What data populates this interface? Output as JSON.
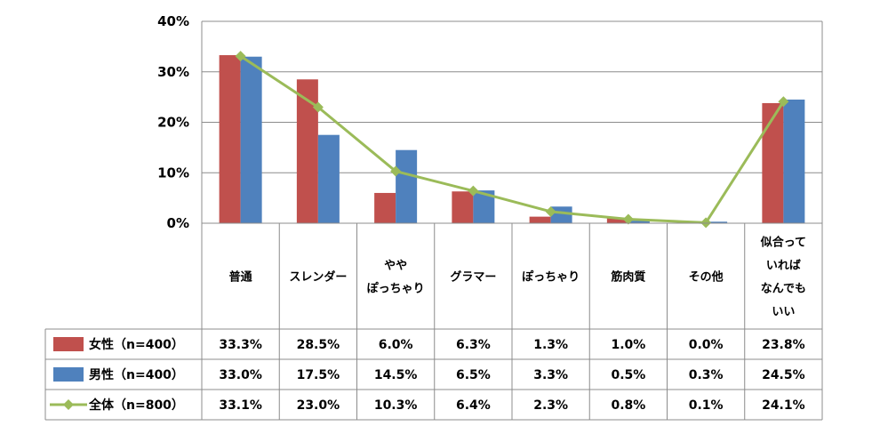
{
  "chart_data": {
    "type": "bar",
    "categories": [
      [
        "普通"
      ],
      [
        "スレンダー"
      ],
      [
        "やや",
        "ぽっちゃり"
      ],
      [
        "グラマー"
      ],
      [
        "ぽっちゃり"
      ],
      [
        "筋肉質"
      ],
      [
        "その他"
      ],
      [
        "似合って",
        "いれば",
        "なんでも",
        "いい"
      ]
    ],
    "series": [
      {
        "name": "女性（n=400）",
        "type": "bar",
        "color": "#c0504d",
        "values": [
          33.3,
          28.5,
          6.0,
          6.3,
          1.3,
          1.0,
          0.0,
          23.8
        ],
        "labels": [
          "33.3%",
          "28.5%",
          "6.0%",
          "6.3%",
          "1.3%",
          "1.0%",
          "0.0%",
          "23.8%"
        ]
      },
      {
        "name": "男性（n=400）",
        "type": "bar",
        "color": "#4f81bd",
        "values": [
          33.0,
          17.5,
          14.5,
          6.5,
          3.3,
          0.5,
          0.3,
          24.5
        ],
        "labels": [
          "33.0%",
          "17.5%",
          "14.5%",
          "6.5%",
          "3.3%",
          "0.5%",
          "0.3%",
          "24.5%"
        ]
      },
      {
        "name": "全体（n=800）",
        "type": "line",
        "color": "#9bbb59",
        "values": [
          33.1,
          23.0,
          10.3,
          6.4,
          2.3,
          0.8,
          0.1,
          24.1
        ],
        "labels": [
          "33.1%",
          "23.0%",
          "10.3%",
          "6.4%",
          "2.3%",
          "0.8%",
          "0.1%",
          "24.1%"
        ]
      }
    ],
    "yticks": [
      "0%",
      "10%",
      "20%",
      "30%",
      "40%"
    ],
    "ylim": [
      0,
      40
    ],
    "grid": true,
    "legend": "data-table"
  }
}
